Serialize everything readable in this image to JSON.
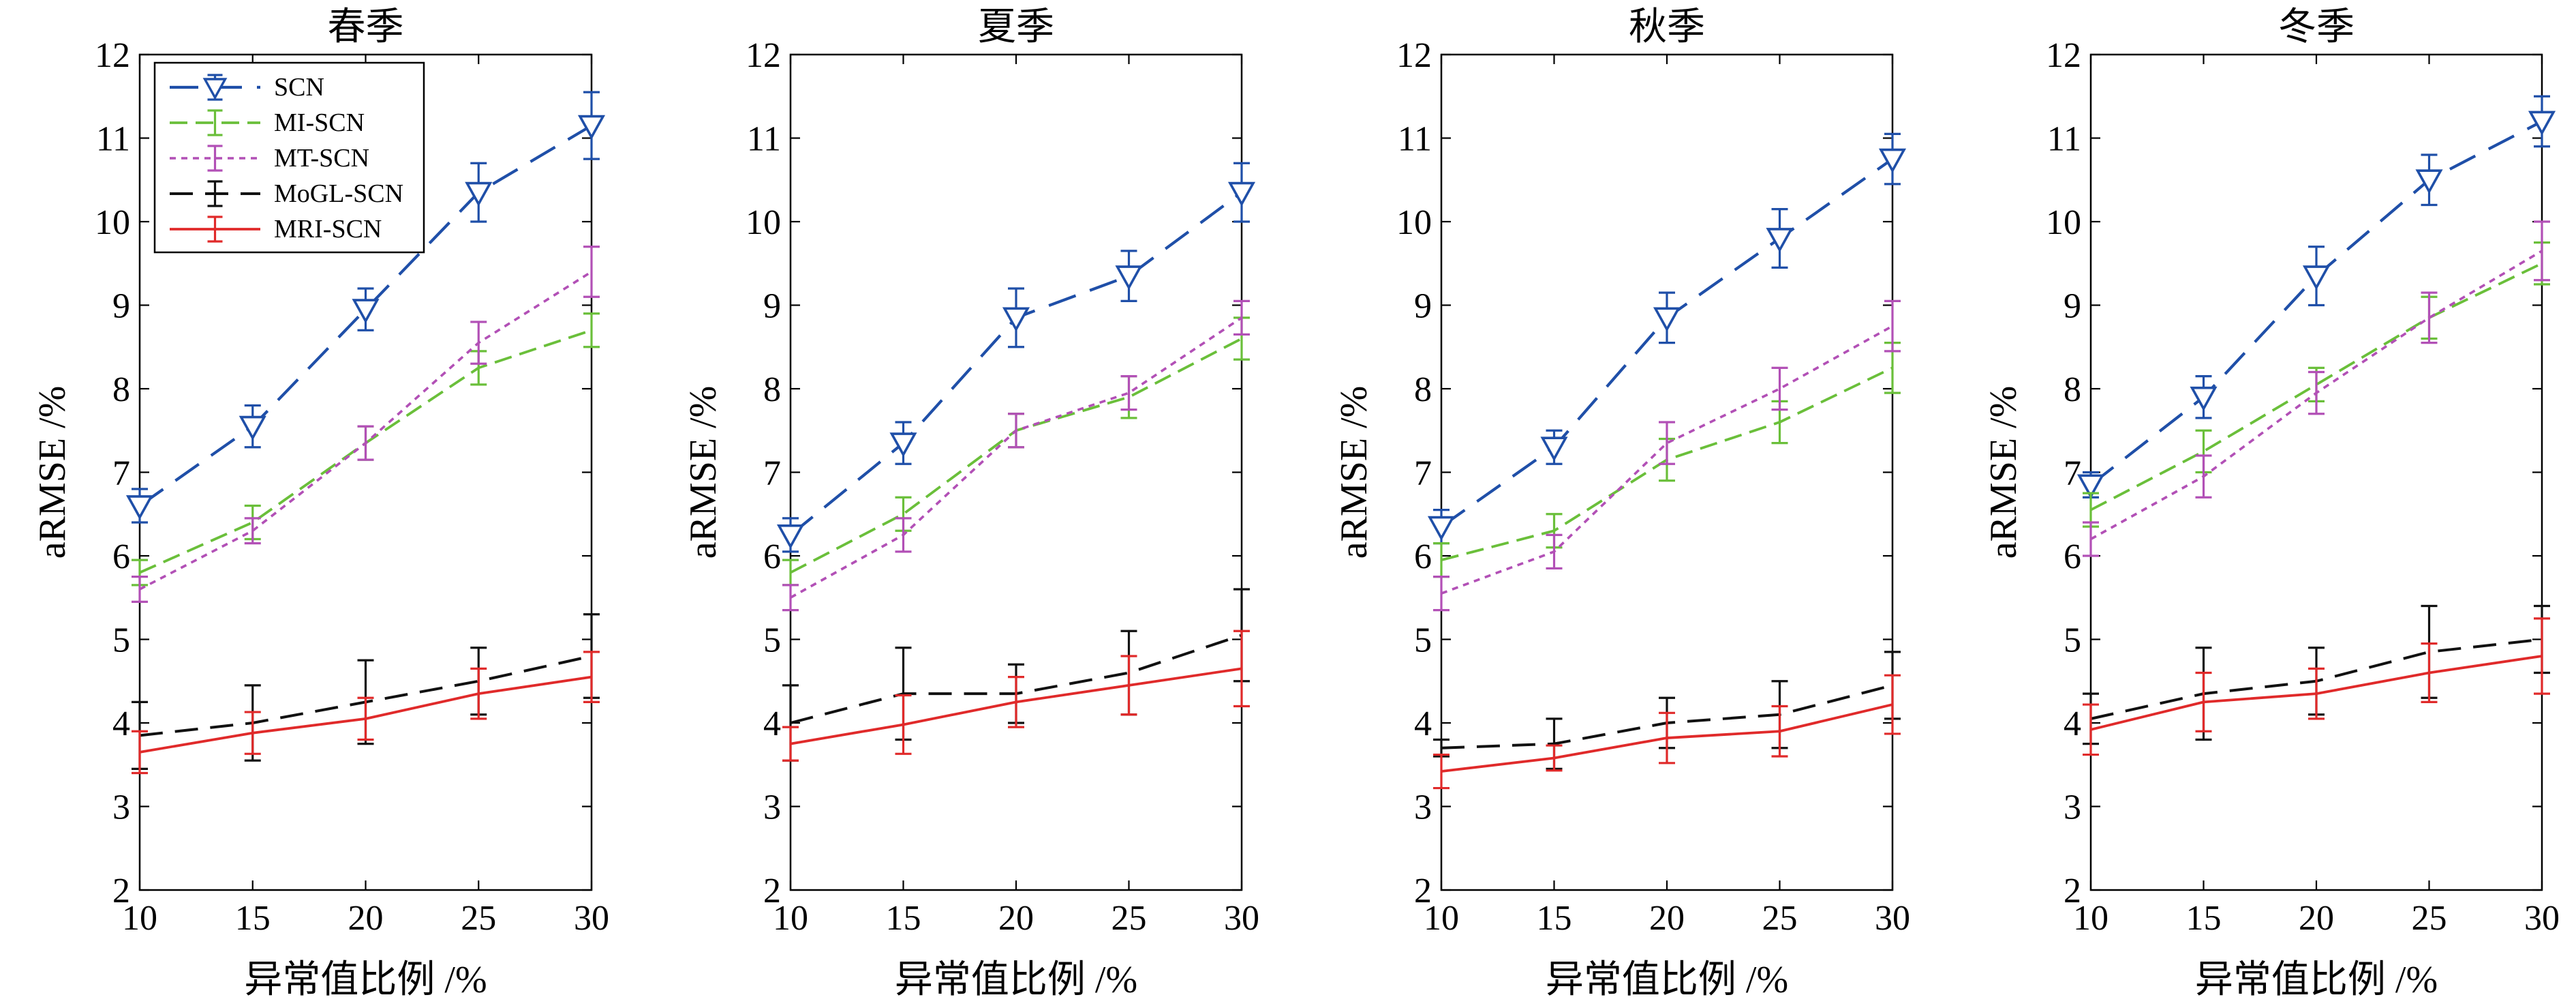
{
  "legend_position": "top-left",
  "colors": {
    "SCN": "#1f4fa8",
    "MI-SCN": "#6abf3a",
    "MT-SCN": "#b250b6",
    "MoGL-SCN": "#111111",
    "MRI-SCN": "#e02a2a"
  },
  "chart_data": [
    {
      "type": "line",
      "title": "春季",
      "xlabel": "异常值比例 /%",
      "ylabel": "aRMSE /%",
      "x": [
        10,
        15,
        20,
        25,
        30
      ],
      "xticks": [
        "10",
        "15",
        "20",
        "25",
        "30"
      ],
      "yticks": [
        "2",
        "3",
        "4",
        "5",
        "6",
        "7",
        "8",
        "9",
        "10",
        "11",
        "12"
      ],
      "xlim": [
        10,
        30
      ],
      "ylim": [
        2,
        12
      ],
      "legend": [
        "SCN",
        "MI-SCN",
        "MT-SCN",
        "MoGL-SCN",
        "MRI-SCN"
      ],
      "series": [
        {
          "name": "SCN",
          "values": [
            6.6,
            7.55,
            8.95,
            10.35,
            11.15
          ],
          "errors": [
            0.2,
            0.25,
            0.25,
            0.35,
            0.4
          ]
        },
        {
          "name": "MI-SCN",
          "values": [
            5.8,
            6.4,
            7.35,
            8.25,
            8.7
          ],
          "errors": [
            0.15,
            0.2,
            0.2,
            0.2,
            0.2
          ]
        },
        {
          "name": "MT-SCN",
          "values": [
            5.6,
            6.3,
            7.35,
            8.55,
            9.4
          ],
          "errors": [
            0.15,
            0.15,
            0.2,
            0.25,
            0.3
          ]
        },
        {
          "name": "MoGL-SCN",
          "values": [
            3.85,
            4.0,
            4.25,
            4.5,
            4.8
          ],
          "errors": [
            0.4,
            0.45,
            0.5,
            0.4,
            0.5
          ]
        },
        {
          "name": "MRI-SCN",
          "values": [
            3.65,
            3.88,
            4.05,
            4.35,
            4.55
          ],
          "errors": [
            0.25,
            0.25,
            0.25,
            0.3,
            0.3
          ]
        }
      ]
    },
    {
      "type": "line",
      "title": "夏季",
      "xlabel": "异常值比例 /%",
      "ylabel": "aRMSE /%",
      "x": [
        10,
        15,
        20,
        25,
        30
      ],
      "xticks": [
        "10",
        "15",
        "20",
        "25",
        "30"
      ],
      "yticks": [
        "2",
        "3",
        "4",
        "5",
        "6",
        "7",
        "8",
        "9",
        "10",
        "11",
        "12"
      ],
      "xlim": [
        10,
        30
      ],
      "ylim": [
        2,
        12
      ],
      "series": [
        {
          "name": "SCN",
          "values": [
            6.25,
            7.35,
            8.85,
            9.35,
            10.35
          ],
          "errors": [
            0.2,
            0.25,
            0.35,
            0.3,
            0.35
          ]
        },
        {
          "name": "MI-SCN",
          "values": [
            5.8,
            6.5,
            7.5,
            7.9,
            8.6
          ],
          "errors": [
            0.15,
            0.2,
            0.2,
            0.25,
            0.25
          ]
        },
        {
          "name": "MT-SCN",
          "values": [
            5.5,
            6.25,
            7.5,
            7.95,
            8.85
          ],
          "errors": [
            0.15,
            0.2,
            0.2,
            0.2,
            0.2
          ]
        },
        {
          "name": "MoGL-SCN",
          "values": [
            4.0,
            4.35,
            4.35,
            4.6,
            5.05
          ],
          "errors": [
            0.45,
            0.55,
            0.35,
            0.5,
            0.55
          ]
        },
        {
          "name": "MRI-SCN",
          "values": [
            3.75,
            3.98,
            4.25,
            4.45,
            4.65
          ],
          "errors": [
            0.2,
            0.35,
            0.3,
            0.35,
            0.45
          ]
        }
      ]
    },
    {
      "type": "line",
      "title": "秋季",
      "xlabel": "异常值比例 /%",
      "ylabel": "aRMSE /%",
      "x": [
        10,
        15,
        20,
        25,
        30
      ],
      "xticks": [
        "10",
        "15",
        "20",
        "25",
        "30"
      ],
      "yticks": [
        "2",
        "3",
        "4",
        "5",
        "6",
        "7",
        "8",
        "9",
        "10",
        "11",
        "12"
      ],
      "xlim": [
        10,
        30
      ],
      "ylim": [
        2,
        12
      ],
      "series": [
        {
          "name": "SCN",
          "values": [
            6.35,
            7.3,
            8.85,
            9.8,
            10.75
          ],
          "errors": [
            0.2,
            0.2,
            0.3,
            0.35,
            0.3
          ]
        },
        {
          "name": "MI-SCN",
          "values": [
            5.95,
            6.3,
            7.15,
            7.6,
            8.25
          ],
          "errors": [
            0.2,
            0.2,
            0.25,
            0.25,
            0.3
          ]
        },
        {
          "name": "MT-SCN",
          "values": [
            5.55,
            6.05,
            7.35,
            8.0,
            8.75
          ],
          "errors": [
            0.2,
            0.2,
            0.25,
            0.25,
            0.3
          ]
        },
        {
          "name": "MoGL-SCN",
          "values": [
            3.7,
            3.75,
            4.0,
            4.1,
            4.45
          ],
          "errors": [
            0.1,
            0.3,
            0.3,
            0.4,
            0.4
          ]
        },
        {
          "name": "MRI-SCN",
          "values": [
            3.42,
            3.58,
            3.82,
            3.9,
            4.22
          ],
          "errors": [
            0.2,
            0.15,
            0.3,
            0.3,
            0.35
          ]
        }
      ]
    },
    {
      "type": "line",
      "title": "冬季",
      "xlabel": "异常值比例 /%",
      "ylabel": "aRMSE /%",
      "x": [
        10,
        15,
        20,
        25,
        30
      ],
      "xticks": [
        "10",
        "15",
        "20",
        "25",
        "30"
      ],
      "yticks": [
        "2",
        "3",
        "4",
        "5",
        "6",
        "7",
        "8",
        "9",
        "10",
        "11",
        "12"
      ],
      "xlim": [
        10,
        30
      ],
      "ylim": [
        2,
        12
      ],
      "series": [
        {
          "name": "SCN",
          "values": [
            6.85,
            7.9,
            9.35,
            10.5,
            11.2
          ],
          "errors": [
            0.15,
            0.25,
            0.35,
            0.3,
            0.3
          ]
        },
        {
          "name": "MI-SCN",
          "values": [
            6.55,
            7.25,
            8.05,
            8.85,
            9.5
          ],
          "errors": [
            0.2,
            0.25,
            0.2,
            0.25,
            0.25
          ]
        },
        {
          "name": "MT-SCN",
          "values": [
            6.2,
            6.95,
            7.95,
            8.85,
            9.65
          ],
          "errors": [
            0.2,
            0.25,
            0.25,
            0.3,
            0.35
          ]
        },
        {
          "name": "MoGL-SCN",
          "values": [
            4.05,
            4.35,
            4.5,
            4.85,
            5.0
          ],
          "errors": [
            0.3,
            0.55,
            0.4,
            0.55,
            0.4
          ]
        },
        {
          "name": "MRI-SCN",
          "values": [
            3.92,
            4.25,
            4.35,
            4.6,
            4.8
          ],
          "errors": [
            0.3,
            0.35,
            0.3,
            0.35,
            0.45
          ]
        }
      ]
    }
  ]
}
